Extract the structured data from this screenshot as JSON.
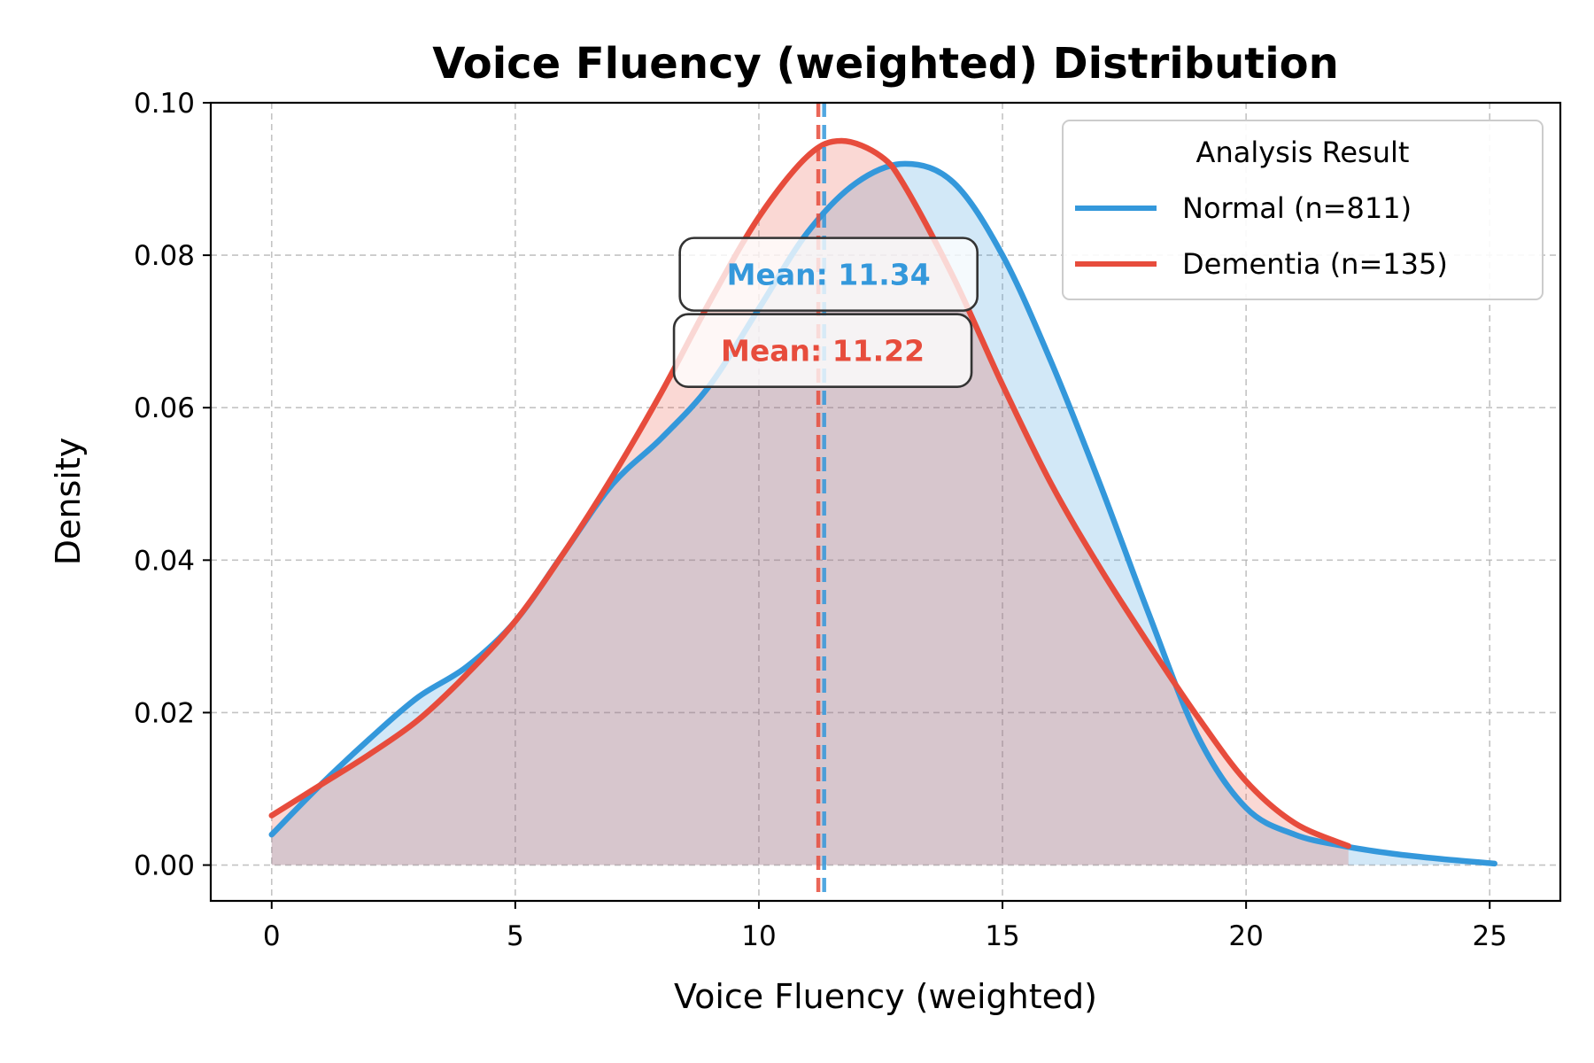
{
  "chart_data": {
    "type": "area",
    "title": "Voice Fluency (weighted) Distribution",
    "xlabel": "Voice Fluency (weighted)",
    "ylabel": "Density",
    "xlim": [
      -1.25,
      26.45
    ],
    "ylim": [
      -0.0047,
      0.1
    ],
    "xticks": [
      0,
      5,
      10,
      15,
      20,
      25
    ],
    "yticks": [
      0.0,
      0.02,
      0.04,
      0.06,
      0.08,
      0.1
    ],
    "ytick_labels": [
      "0.00",
      "0.02",
      "0.04",
      "0.06",
      "0.08",
      "0.10"
    ],
    "grid": true,
    "legend": {
      "title": "Analysis Result",
      "placement": "top-right"
    },
    "series": [
      {
        "name": "Normal (n=811)",
        "color": "#3498db",
        "mean": 11.34,
        "mean_label": "Mean: 11.34",
        "x": [
          0,
          1,
          2,
          3,
          4,
          5,
          6,
          7,
          8,
          9,
          10,
          11,
          12,
          13,
          14,
          15,
          16,
          17,
          18,
          19,
          20,
          21,
          22,
          23,
          24,
          25.1
        ],
        "y": [
          0.004,
          0.0105,
          0.0165,
          0.022,
          0.026,
          0.032,
          0.041,
          0.05,
          0.056,
          0.063,
          0.073,
          0.083,
          0.0895,
          0.092,
          0.0895,
          0.08,
          0.066,
          0.05,
          0.033,
          0.017,
          0.0075,
          0.004,
          0.0025,
          0.0015,
          0.0008,
          0.0002
        ]
      },
      {
        "name": "Dementia (n=135)",
        "color": "#e74c3c",
        "mean": 11.22,
        "mean_label": "Mean: 11.22",
        "x": [
          0,
          1,
          2,
          3,
          4,
          5,
          6,
          7,
          8,
          9,
          10,
          11,
          11.7,
          12.5,
          13,
          14,
          15,
          16,
          17,
          18,
          19,
          20,
          21,
          22.1
        ],
        "y": [
          0.0065,
          0.0105,
          0.0145,
          0.019,
          0.025,
          0.032,
          0.041,
          0.051,
          0.062,
          0.074,
          0.085,
          0.093,
          0.095,
          0.093,
          0.089,
          0.077,
          0.063,
          0.05,
          0.039,
          0.029,
          0.0195,
          0.011,
          0.0055,
          0.0025
        ]
      }
    ]
  }
}
